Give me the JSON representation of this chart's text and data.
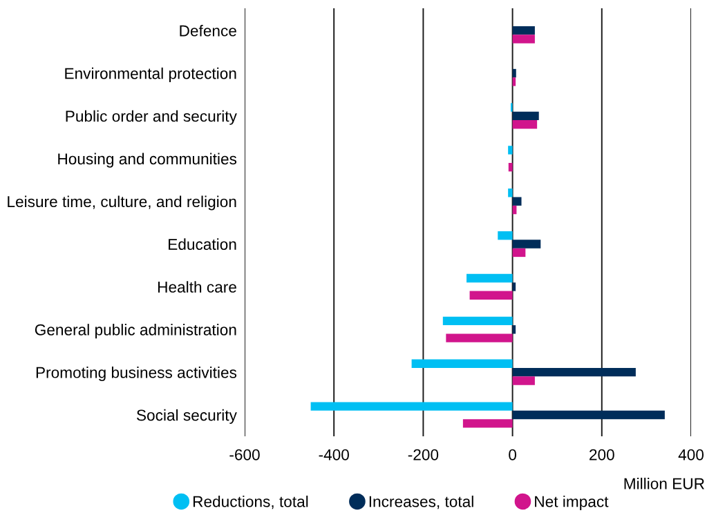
{
  "chart_data": {
    "type": "bar",
    "orientation": "horizontal",
    "xlabel": "Million EUR",
    "categories": [
      "Defence",
      "Environmental protection",
      "Public order and security",
      "Housing and communities",
      "Leisure time, culture, and religion",
      "Education",
      "Health care",
      "General public administration",
      "Promoting business activities",
      "Social security"
    ],
    "series": [
      {
        "name": "Reductions, total",
        "color": "#00bff3",
        "values": [
          null,
          null,
          -4,
          -10,
          -10,
          -33,
          -103,
          -156,
          -226,
          -452
        ]
      },
      {
        "name": "Increases, total",
        "color": "#002d5a",
        "values": [
          50,
          8,
          59,
          null,
          20,
          63,
          7,
          7,
          276,
          341
        ]
      },
      {
        "name": "Net impact",
        "color": "#d1158c",
        "values": [
          50,
          7,
          55,
          -9,
          9,
          29,
          -96,
          -149,
          50,
          -111
        ]
      }
    ],
    "xlim": [
      -600,
      400
    ],
    "xticks": [
      -600,
      -400,
      -200,
      0,
      200,
      400
    ],
    "grid": "x",
    "legend": "bottom"
  }
}
